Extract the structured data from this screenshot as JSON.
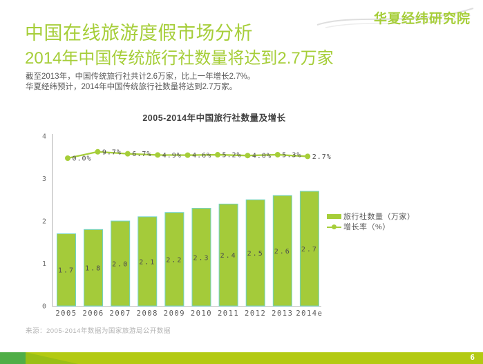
{
  "logo": {
    "text": "华夏经纬研究院"
  },
  "header": {
    "title": "中国在线旅游度假市场分析",
    "subtitle": "2014年中国传统旅行社数量将达到2.7万家",
    "body_line1": "截至2013年，中国传统旅行社共计2.6万家，比上一年增长2.7%。",
    "body_line2": "华夏经纬预计，2014年中国传统旅行社数量将达到2.7万家。"
  },
  "chart_data": {
    "type": "bar",
    "title": "2005-2014年中国旅行社数量及增长",
    "categories": [
      "2005",
      "2006",
      "2007",
      "2008",
      "2009",
      "2010",
      "2011",
      "2012",
      "2013",
      "2014e"
    ],
    "series": [
      {
        "name": "旅行社数量（万家）",
        "kind": "bar",
        "values": [
          1.7,
          1.8,
          2.0,
          2.1,
          2.2,
          2.3,
          2.4,
          2.5,
          2.6,
          2.7
        ],
        "labels": [
          "1.7",
          "1.8",
          "2.0",
          "2.1",
          "2.2",
          "2.3",
          "2.4",
          "2.5",
          "2.6",
          "2.7"
        ]
      },
      {
        "name": "增长率（%）",
        "kind": "line",
        "values": [
          0.0,
          9.7,
          6.7,
          4.9,
          4.6,
          5.2,
          4.0,
          5.3,
          2.7
        ],
        "labels": [
          "0.0%",
          "9.7%",
          "6.7%",
          "4.9%",
          "4.6%",
          "5.2%",
          "4.0%",
          "5.3%",
          "2.7%"
        ]
      }
    ],
    "xlabel": "",
    "ylabel": "",
    "ylim": [
      0,
      4
    ],
    "yticks": [
      "0",
      "1",
      "2",
      "3",
      "4"
    ],
    "grid": false,
    "legend_position": "right-middle",
    "notes": "line series rendered as 9 evenly spaced points across plot, sitting near top of bars"
  },
  "source": {
    "text": "来源：2005-2014年数据为国家旅游局公开数据"
  },
  "footer": {
    "page_number": "6"
  },
  "colors": {
    "accent_green": "#a6ce39",
    "bar_fill": "#a4cb3a",
    "bar_border": "#6fd3cb",
    "line_green": "#a6ce39",
    "chart_text": "#4d4d4d",
    "axis_line": "#b0b0b0",
    "baseline": "#cccccc",
    "tick_text": "#6e6e6e",
    "body_text": "#595959",
    "source_text": "#b3b3b3",
    "footer_bar": "#b3ca12",
    "footer_dark": "#4fae47",
    "footer_wedge": "#99bf15",
    "page_number": "#ffffff"
  }
}
